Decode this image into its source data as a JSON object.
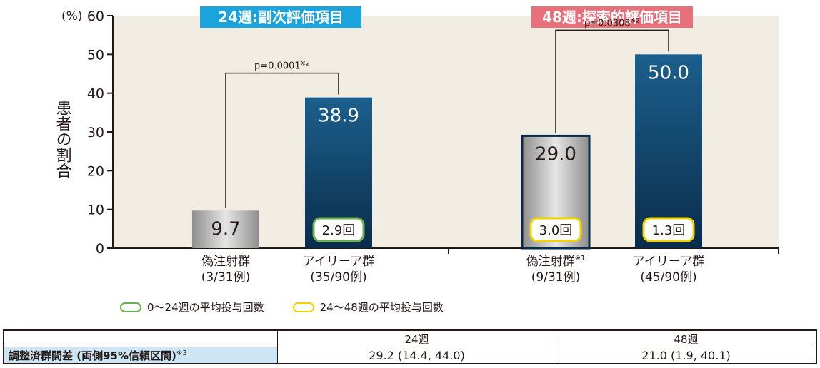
{
  "chart_data": {
    "type": "bar",
    "y_unit_label": "(%)",
    "ylabel": "患者の割合",
    "ylim": [
      0,
      60
    ],
    "yticks": [
      0,
      10,
      20,
      30,
      40,
      50,
      60
    ],
    "grid": false,
    "groups": [
      {
        "title": "24週:副次評価項目",
        "title_color": "#1aa3dc",
        "p_value": "p=0.0001",
        "p_note": "※2",
        "bars": [
          {
            "label": "偽注射群",
            "label_note": "",
            "sublabel": "(3/31例)",
            "value": 9.7,
            "value_text": "9.7",
            "dose": "",
            "style": "gray"
          },
          {
            "label": "アイリーア群",
            "label_note": "",
            "sublabel": "(35/90例)",
            "value": 38.9,
            "value_text": "38.9",
            "dose": "2.9回",
            "dose_color": "#6ab04c",
            "style": "blue"
          }
        ]
      },
      {
        "title": "48週:探索的評価項目",
        "title_color": "#e8707a",
        "p_value": "p=0.0308",
        "p_note": "※2",
        "bars": [
          {
            "label": "偽注射群",
            "label_note": "※1",
            "sublabel": "(9/31例)",
            "value": 29.0,
            "value_text": "29.0",
            "dose": "3.0回",
            "dose_color": "#f2d300",
            "style": "gray-outlined"
          },
          {
            "label": "アイリーア群",
            "label_note": "",
            "sublabel": "(45/90例)",
            "value": 50.0,
            "value_text": "50.0",
            "dose": "1.3回",
            "dose_color": "#f2d300",
            "style": "blue"
          }
        ]
      }
    ]
  },
  "legend": [
    {
      "label": "0〜24週の平均投与回数",
      "color": "#6ab04c"
    },
    {
      "label": "24〜48週の平均投与回数",
      "color": "#f2d300"
    }
  ],
  "table": {
    "headers": [
      "24週",
      "48週"
    ],
    "row_label": "調整済群間差 (両側95%信頼区間)",
    "row_label_note": "※3",
    "values": [
      "29.2 (14.4, 44.0)",
      "21.0 (1.9, 40.1)"
    ]
  }
}
